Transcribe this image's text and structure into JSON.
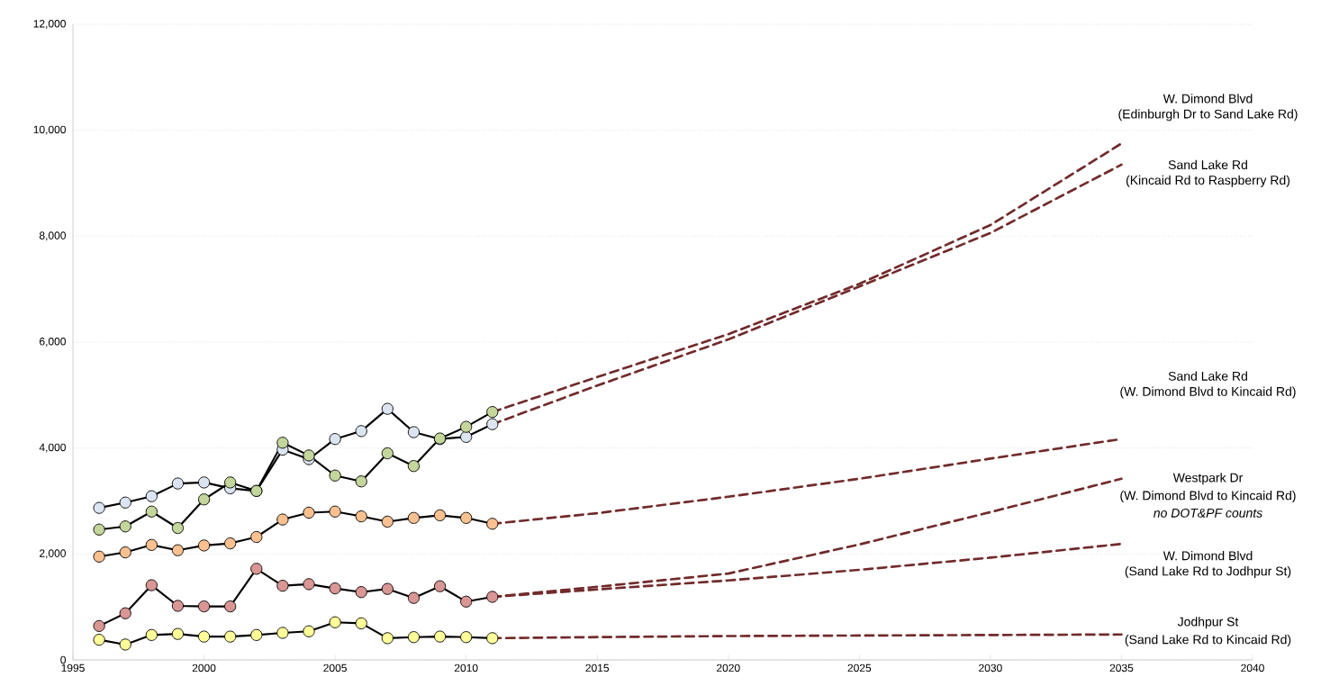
{
  "chart_data": {
    "type": "line",
    "x": [
      1996,
      1997,
      1998,
      1999,
      2000,
      2001,
      2002,
      2003,
      2004,
      2005,
      2006,
      2007,
      2008,
      2009,
      2010,
      2011
    ],
    "series": [
      {
        "color": "#dbe5f1",
        "marker": "circle",
        "line_style": "solid",
        "values": [
          2870,
          2970,
          3090,
          3330,
          3350,
          3240,
          3190,
          3970,
          3790,
          4170,
          4320,
          4740,
          4300,
          4170,
          4210,
          4450
        ]
      },
      {
        "color": "#c3d69b",
        "marker": "circle",
        "line_style": "solid",
        "values": [
          2460,
          2520,
          2800,
          2490,
          3030,
          3350,
          3190,
          4100,
          3860,
          3480,
          3370,
          3900,
          3660,
          4180,
          4400,
          4680
        ]
      },
      {
        "color": "#fac090",
        "marker": "circle",
        "line_style": "solid",
        "values": [
          1950,
          2030,
          2170,
          2070,
          2160,
          2200,
          2320,
          2650,
          2780,
          2800,
          2710,
          2610,
          2680,
          2730,
          2680,
          2570
        ]
      },
      {
        "color": "#d99694",
        "marker": "circle",
        "line_style": "solid",
        "values": [
          640,
          880,
          1410,
          1020,
          1010,
          1010,
          1720,
          1400,
          1430,
          1350,
          1280,
          1340,
          1170,
          1390,
          1100,
          1190
        ]
      },
      {
        "color": "#ffff99",
        "marker": "circle",
        "line_style": "solid",
        "values": [
          380,
          290,
          470,
          490,
          440,
          440,
          470,
          510,
          540,
          710,
          690,
          410,
          430,
          440,
          430,
          410
        ]
      },
      {
        "name": "W. Dimond Blvd",
        "color": "#722a2a",
        "marker": "none",
        "line_style": "dashed",
        "x": [
          2011,
          2015,
          2020,
          2025,
          2030,
          2035
        ],
        "values": [
          4680,
          5340,
          6150,
          7100,
          8210,
          9750
        ]
      },
      {
        "name": "Sand Lake Rd",
        "color": "#722a2a",
        "marker": "none",
        "line_style": "dashed",
        "x": [
          2011,
          2015,
          2020,
          2025,
          2030,
          2035
        ],
        "values": [
          4450,
          5180,
          6050,
          7050,
          8060,
          9350
        ]
      },
      {
        "name": "Sand Lake Rd",
        "color": "#722a2a",
        "marker": "none",
        "line_style": "dashed",
        "x": [
          2011,
          2015,
          2020,
          2025,
          2030,
          2035
        ],
        "values": [
          2570,
          2770,
          3080,
          3420,
          3800,
          4170
        ]
      },
      {
        "name": "Westpark Dr",
        "color": "#722a2a",
        "marker": "none",
        "line_style": "dashed",
        "x": [
          2011,
          2015,
          2020,
          2025,
          2030,
          2035
        ],
        "values": [
          1190,
          1380,
          1630,
          2180,
          2790,
          3420
        ]
      },
      {
        "name": "W. Dimond Blvd",
        "color": "#722a2a",
        "marker": "none",
        "line_style": "dashed",
        "x": [
          2011,
          2015,
          2020,
          2025,
          2030,
          2035
        ],
        "values": [
          1190,
          1330,
          1500,
          1700,
          1930,
          2190
        ]
      },
      {
        "name": "Jodhpur St",
        "color": "#722a2a",
        "marker": "none",
        "line_style": "dashed",
        "x": [
          2011,
          2015,
          2020,
          2025,
          2030,
          2035
        ],
        "values": [
          410,
          430,
          450,
          460,
          470,
          480
        ]
      }
    ],
    "annotations": [
      "(Edinburgh Dr to Sand Lake Rd)",
      "(Kincaid Rd to Raspberry Rd)",
      "(W. Dimond Blvd to Kincaid Rd)",
      "(W. Dimond Blvd to Kincaid Rd)",
      "*no DOT&PF counts*",
      "(Sand Lake Rd to Jodhpur St)",
      "(Sand Lake Rd to Kincaid Rd)"
    ],
    "xlim": [
      1995,
      2040
    ],
    "xticks": [
      1995,
      2000,
      2005,
      2010,
      2015,
      2020,
      2025,
      2030,
      2035,
      2040
    ],
    "ylim": [
      0,
      12000
    ],
    "yticks": [
      0,
      {
        "value": 2000,
        "label": "2,000"
      },
      {
        "value": 4000,
        "label": "4,000"
      },
      {
        "value": 6000,
        "label": "6,000"
      },
      {
        "value": 8000,
        "label": "8,000"
      },
      {
        "value": 10000,
        "label": "10,000"
      },
      {
        "value": 12000,
        "label": "12,000"
      }
    ],
    "grid": "y"
  }
}
